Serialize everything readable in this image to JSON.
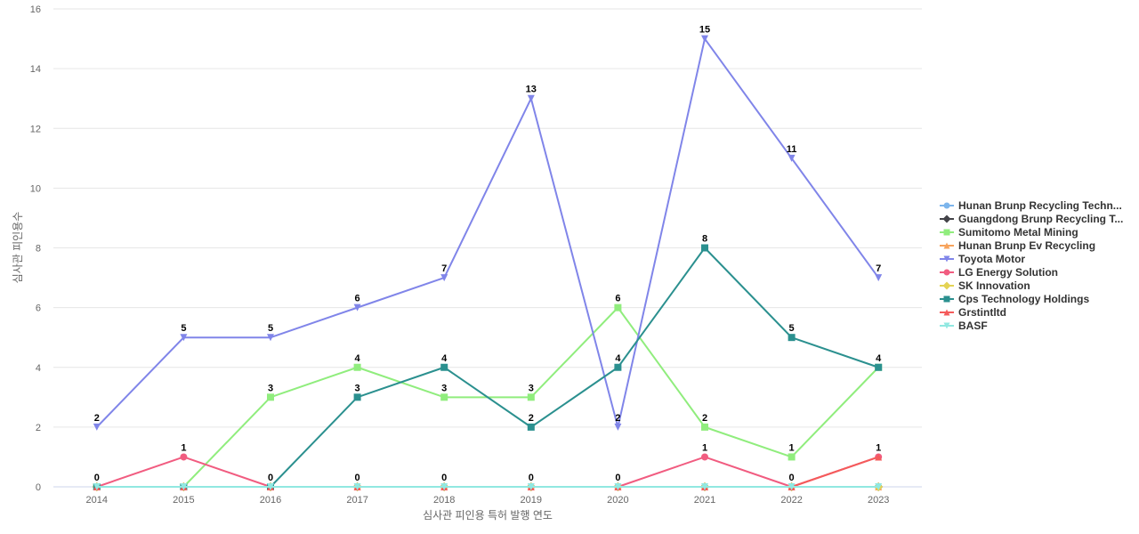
{
  "chart_data": {
    "type": "line",
    "xlabel": "심사관 피인용 특허 발행 연도",
    "ylabel": "심사관 피인용수",
    "categories": [
      "2014",
      "2015",
      "2016",
      "2017",
      "2018",
      "2019",
      "2020",
      "2021",
      "2022",
      "2023"
    ],
    "ylim": [
      0,
      16
    ],
    "yticks": [
      0,
      2,
      4,
      6,
      8,
      10,
      12,
      14,
      16
    ],
    "grid": true,
    "legend_position": "right",
    "series": [
      {
        "name": "Hunan Brunp Recycling Techn...",
        "color": "#7cb5ec",
        "marker": "circle",
        "values": [
          0,
          0,
          0,
          0,
          0,
          0,
          0,
          0,
          0,
          0
        ]
      },
      {
        "name": "Guangdong Brunp Recycling T...",
        "color": "#434348",
        "marker": "diamond",
        "values": [
          0,
          0,
          0,
          0,
          0,
          0,
          0,
          0,
          0,
          0
        ]
      },
      {
        "name": "Sumitomo Metal Mining",
        "color": "#90ed7d",
        "marker": "square",
        "values": [
          0,
          0,
          3,
          4,
          3,
          3,
          6,
          2,
          1,
          4
        ]
      },
      {
        "name": "Hunan Brunp Ev Recycling",
        "color": "#f7a35c",
        "marker": "triangle",
        "values": [
          0,
          0,
          0,
          0,
          0,
          0,
          0,
          0,
          0,
          0
        ]
      },
      {
        "name": "Toyota Motor",
        "color": "#8085e9",
        "marker": "triangle-down",
        "values": [
          2,
          5,
          5,
          6,
          7,
          13,
          2,
          15,
          11,
          7
        ]
      },
      {
        "name": "LG Energy Solution",
        "color": "#f15c80",
        "marker": "circle",
        "values": [
          0,
          1,
          0,
          0,
          0,
          0,
          0,
          1,
          0,
          1
        ]
      },
      {
        "name": "SK Innovation",
        "color": "#e4d354",
        "marker": "diamond",
        "values": [
          0,
          0,
          0,
          0,
          0,
          0,
          0,
          0,
          0,
          0
        ]
      },
      {
        "name": "Cps Technology Holdings",
        "color": "#2b908f",
        "marker": "square",
        "values": [
          0,
          0,
          0,
          3,
          4,
          2,
          4,
          8,
          5,
          4
        ]
      },
      {
        "name": "Grstintltd",
        "color": "#f45b5b",
        "marker": "triangle",
        "values": [
          0,
          0,
          0,
          0,
          0,
          0,
          0,
          0,
          0,
          1
        ]
      },
      {
        "name": "BASF",
        "color": "#91e8e1",
        "marker": "triangle-down",
        "values": [
          0,
          0,
          0,
          0,
          0,
          0,
          0,
          0,
          0,
          0
        ]
      }
    ],
    "data_labels": [
      {
        "series": "Toyota Motor",
        "values": [
          2,
          5,
          5,
          6,
          7,
          13,
          2,
          15,
          11,
          7
        ]
      },
      {
        "series": "Sumitomo Metal Mining",
        "values": [
          null,
          null,
          3,
          4,
          3,
          3,
          6,
          2,
          1,
          null
        ]
      },
      {
        "series": "Cps Technology Holdings",
        "values": [
          null,
          null,
          null,
          3,
          4,
          2,
          4,
          8,
          5,
          4
        ]
      },
      {
        "series": "LG Energy Solution",
        "values": [
          0,
          1,
          0,
          0,
          0,
          0,
          0,
          1,
          0,
          1
        ]
      }
    ]
  }
}
